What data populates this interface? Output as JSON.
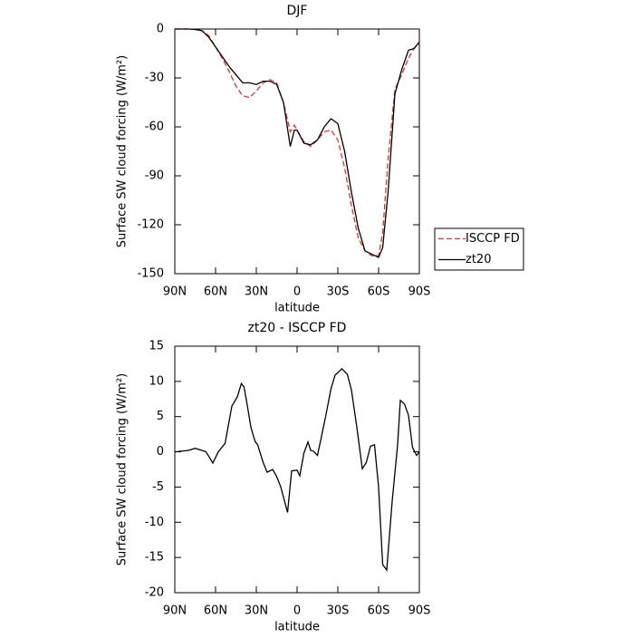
{
  "chart_data": [
    {
      "type": "line",
      "title": "DJF",
      "xlabel": "latitude",
      "ylabel": "Surface SW cloud forcing (W/m²)",
      "x": [
        90,
        85,
        80,
        75,
        70,
        65,
        60,
        55,
        50,
        45,
        40,
        35,
        30,
        25,
        20,
        15,
        10,
        5,
        2,
        0,
        -5,
        -10,
        -15,
        -20,
        -25,
        -30,
        -35,
        -40,
        -45,
        -50,
        -55,
        -60,
        -63,
        -67,
        -72,
        -77,
        -82,
        -86,
        -90
      ],
      "series": [
        {
          "name": "ISCCP FD",
          "color": "#e8312f",
          "dashed": true,
          "values": [
            0,
            0,
            0,
            -0.3,
            -1,
            -4,
            -11,
            -18,
            -26,
            -35,
            -41,
            -42,
            -38,
            -33,
            -31,
            -33,
            -45,
            -63,
            -59,
            -62,
            -69,
            -72,
            -68,
            -63,
            -62,
            -68,
            -85,
            -108,
            -128,
            -136,
            -139,
            -139,
            -125,
            -80,
            -37,
            -28,
            -18,
            -12,
            -9
          ]
        },
        {
          "name": "zt20",
          "color": "#000000",
          "dashed": false,
          "values": [
            0,
            0,
            0,
            -0.3,
            -1,
            -5,
            -11,
            -17,
            -23,
            -28,
            -33,
            -33,
            -34,
            -32,
            -32,
            -34,
            -45,
            -72,
            -62,
            -62,
            -70,
            -71,
            -68,
            -60,
            -55,
            -58,
            -75,
            -100,
            -122,
            -136,
            -138,
            -140,
            -134,
            -100,
            -40,
            -25,
            -13,
            -12,
            -8
          ]
        }
      ],
      "xlim": [
        90,
        -90
      ],
      "xticks": [
        {
          "value": 90,
          "label": "90N"
        },
        {
          "value": 60,
          "label": "60N"
        },
        {
          "value": 30,
          "label": "30N"
        },
        0,
        {
          "value": -30,
          "label": "30S"
        },
        {
          "value": -60,
          "label": "60S"
        },
        {
          "value": -90,
          "label": "90S"
        }
      ],
      "ylim": [
        -150,
        0
      ],
      "yticks": [
        -150,
        -120,
        -90,
        -60,
        -30,
        0
      ],
      "legend": "right"
    },
    {
      "type": "line",
      "title": "zt20 - ISCCP FD",
      "xlabel": "latitude",
      "ylabel": "Surface SW cloud forcing (W/m²)",
      "x": [
        90,
        80,
        75,
        70,
        67,
        62,
        58,
        53,
        48,
        44,
        41,
        39,
        37,
        34,
        31,
        29,
        25,
        22,
        18,
        15,
        12,
        7,
        4,
        0,
        -2,
        -5,
        -8,
        -10,
        -12,
        -15,
        -17,
        -21,
        -25,
        -28,
        -33,
        -37,
        -40,
        -44,
        -48,
        -51,
        -54,
        -57,
        -60,
        -63,
        -66,
        -70,
        -74,
        -76,
        -79,
        -82,
        -85,
        -88,
        -90
      ],
      "values": [
        0,
        0.2,
        0.5,
        0.2,
        0,
        -1.6,
        0,
        1.2,
        6.5,
        7.8,
        9.7,
        9.2,
        7,
        3.5,
        1.5,
        1,
        -1.5,
        -2.9,
        -2.5,
        -3.5,
        -5,
        -8.6,
        -2.7,
        -2.6,
        -3.4,
        -0.2,
        1.4,
        0.2,
        0.1,
        -0.5,
        1.3,
        5,
        9,
        10.9,
        11.8,
        11,
        8.8,
        3.5,
        -2.4,
        -1.5,
        0.8,
        1,
        -5,
        -16,
        -16.8,
        -7,
        1,
        7.3,
        6.8,
        5.2,
        0.6,
        -0.5,
        0
      ],
      "color": "#000000",
      "xlim": [
        90,
        -90
      ],
      "xticks": [
        {
          "value": 90,
          "label": "90N"
        },
        {
          "value": 60,
          "label": "60N"
        },
        {
          "value": 30,
          "label": "30N"
        },
        0,
        {
          "value": -30,
          "label": "30S"
        },
        {
          "value": -60,
          "label": "60S"
        },
        {
          "value": -90,
          "label": "90S"
        }
      ],
      "ylim": [
        -20,
        15
      ],
      "yticks": [
        -20,
        -15,
        -10,
        -5,
        0,
        5,
        10,
        15
      ]
    }
  ]
}
